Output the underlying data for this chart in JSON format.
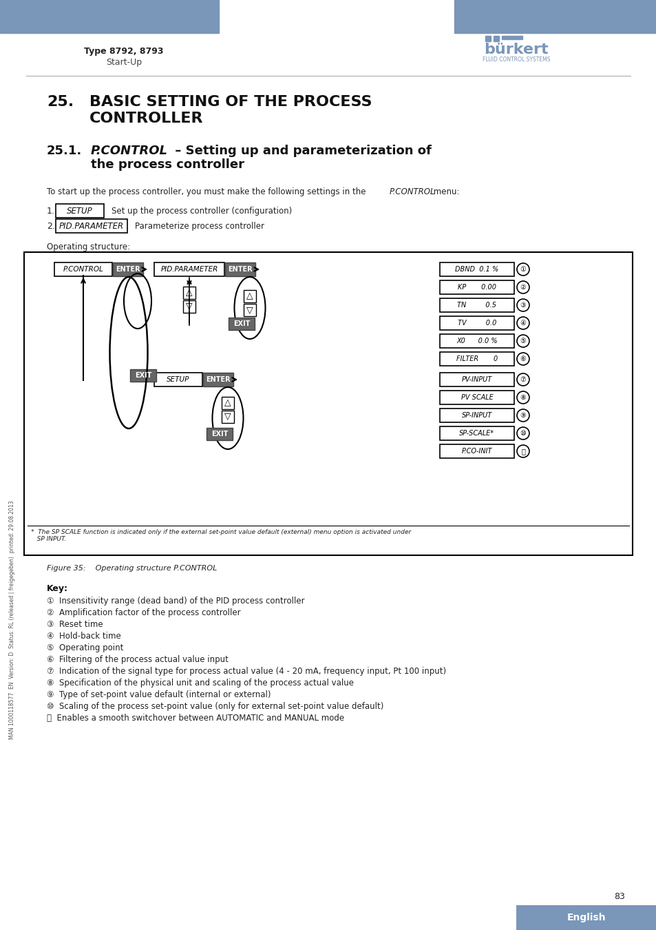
{
  "header_color": "#7a96b8",
  "header_text_left": "Type 8792, 8793",
  "header_subtext": "Start-Up",
  "title_number": "25.",
  "title_text": "BASIC SETTING OF THE PROCESS\nCONTROLLER",
  "section_number": "25.1.",
  "section_title_italic": "P.CONTROL",
  "section_title_rest": " – Setting up and parameterization of\nthe process controller",
  "intro_text": "To start up the process controller, you must make the following settings in the",
  "intro_italic": "P.CONTROL",
  "intro_end": "menu:",
  "item1_box": "SETUP",
  "item1_text": "Set up the process controller (configuration)",
  "item2_box": "PID.PARAMETER",
  "item2_text": "Parameterize process controller",
  "op_struct_label": "Operating structure:",
  "diagram_bg": "#ffffff",
  "diagram_border": "#000000",
  "enter_bg": "#555555",
  "enter_text": "#ffffff",
  "box_bg": "#ffffff",
  "box_border": "#000000",
  "exit_bg": "#555555",
  "exit_text": "#ffffff",
  "note_text": "*  The SP SCALE function is indicated only if the external set-point value default (external) menu option is activated under\n   SP INPUT.",
  "figure_caption": "Figure 35:    Operating structure P.CONTROL",
  "key_label": "Key:",
  "key_items": [
    "①  Insensitivity range (dead band) of the PID process controller",
    "②  Amplification factor of the process controller",
    "③  Reset time",
    "④  Hold-back time",
    "⑤  Operating point",
    "⑥  Filtering of the process actual value input",
    "⑦  Indication of the signal type for process actual value (4 - 20 mA, frequency input, Pt 100 input)",
    "⑧  Specification of the physical unit and scaling of the process actual value",
    "⑨  Type of set-point value default (internal or external)",
    "⑩  Scaling of the process set-point value (only for external set-point value default)",
    "⑪  Enables a smooth switchover between AUTOMATIC and MANUAL mode"
  ],
  "sidebar_text": "MAN 1000118577  EN  Version: D  Status: RL (released | freigegeben)  printed: 29.08.2013",
  "page_number": "83",
  "footer_text": "English",
  "footer_bg": "#7a96b8"
}
